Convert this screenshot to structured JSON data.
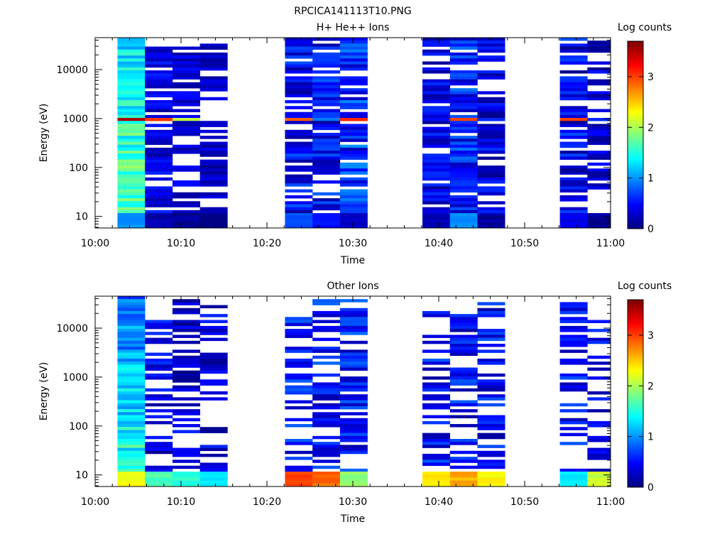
{
  "figure_title": "RPCICA141113T10.PNG",
  "chart_data": [
    {
      "type": "heatmap",
      "title": "H+ He++ Ions",
      "xlabel": "Time",
      "ylabel": "Energy (eV)",
      "colorbar_label": "Log counts",
      "x_ticks": [
        "10:00",
        "10:10",
        "10:20",
        "10:30",
        "10:40",
        "10:50",
        "11:00"
      ],
      "y_ticks": [
        "10",
        "100",
        "1000",
        "10000"
      ],
      "colorbar_ticks": [
        "0",
        "1",
        "2",
        "3"
      ],
      "xlim_minutes": [
        0,
        60
      ],
      "ylim_ev": [
        5.8,
        45000
      ],
      "y_scale": "log",
      "zlim": [
        0,
        3.7
      ],
      "colormap": "jet",
      "columns": [
        {
          "start": 2.6,
          "end": 5.8,
          "pattern": "full",
          "base": 1.55,
          "var": 0.35,
          "tilt": 0.25,
          "peak": 3.55,
          "low": 1.0,
          "seed": 11
        },
        {
          "start": 5.8,
          "end": 9.0,
          "pattern": "sparse",
          "base": 0.35,
          "var": 0.25,
          "peak": 3.05,
          "fill": 0.74,
          "top": 28000,
          "bot": 9,
          "low": 0.15,
          "seed": 12
        },
        {
          "start": 9.0,
          "end": 12.2,
          "pattern": "sparse",
          "base": 0.3,
          "var": 0.2,
          "peak": 2.1,
          "fill": 0.66,
          "top": 28000,
          "bot": 9,
          "low": 0.1,
          "seed": 13
        },
        {
          "start": 12.2,
          "end": 15.4,
          "pattern": "sparse",
          "base": 0.25,
          "var": 0.2,
          "peak": 0.0,
          "fill": 0.52,
          "top": 35000,
          "bot": 11,
          "low": 0.0,
          "seed": 14
        },
        {
          "start": 22.1,
          "end": 25.3,
          "pattern": "sparse",
          "base": 0.45,
          "var": 0.35,
          "peak": 2.9,
          "fill": 0.74,
          "top": 42000,
          "bot": 7,
          "low": 0.8,
          "seed": 21
        },
        {
          "start": 25.3,
          "end": 28.5,
          "pattern": "sparse",
          "base": 0.45,
          "var": 0.35,
          "peak": 0.9,
          "fill": 0.78,
          "top": 42000,
          "bot": 8,
          "low": 0.55,
          "seed": 22
        },
        {
          "start": 28.5,
          "end": 31.7,
          "pattern": "sparse",
          "base": 0.6,
          "var": 0.4,
          "peak": 3.1,
          "fill": 0.8,
          "top": 42000,
          "bot": 11,
          "low": 0.3,
          "seed": 23
        },
        {
          "start": 38.1,
          "end": 41.3,
          "pattern": "sparse",
          "base": 0.35,
          "var": 0.3,
          "peak": 0.5,
          "fill": 0.7,
          "top": 42000,
          "bot": 7,
          "low": 0.2,
          "seed": 31
        },
        {
          "start": 41.3,
          "end": 44.5,
          "pattern": "sparse",
          "base": 0.5,
          "var": 0.4,
          "peak": 3.0,
          "fill": 0.76,
          "top": 42000,
          "bot": 8,
          "low": 1.0,
          "seed": 32
        },
        {
          "start": 44.5,
          "end": 47.7,
          "pattern": "sparse",
          "base": 0.35,
          "var": 0.3,
          "peak": 0.6,
          "fill": 0.66,
          "top": 42000,
          "bot": 12,
          "low": 0.1,
          "seed": 33
        },
        {
          "start": 54.1,
          "end": 57.3,
          "pattern": "sparse",
          "base": 0.4,
          "var": 0.35,
          "peak": 3.0,
          "fill": 0.76,
          "top": 42000,
          "bot": 7,
          "low": 0.4,
          "seed": 41
        },
        {
          "start": 57.3,
          "end": 60.5,
          "pattern": "sparse",
          "base": 0.3,
          "var": 0.25,
          "peak": 0.6,
          "fill": 0.68,
          "top": 38000,
          "bot": 22,
          "low": 0.1,
          "seed": 42
        }
      ]
    },
    {
      "type": "heatmap",
      "title": "Other Ions",
      "xlabel": "Time",
      "ylabel": "Energy (eV)",
      "colorbar_label": "Log counts",
      "x_ticks": [
        "10:00",
        "10:10",
        "10:20",
        "10:30",
        "10:40",
        "10:50",
        "11:00"
      ],
      "y_ticks": [
        "10",
        "100",
        "1000",
        "10000"
      ],
      "colorbar_ticks": [
        "0",
        "1",
        "2",
        "3"
      ],
      "xlim_minutes": [
        0,
        60
      ],
      "ylim_ev": [
        5.8,
        45000
      ],
      "y_scale": "log",
      "zlim": [
        0,
        3.7
      ],
      "colormap": "jet",
      "columns": [
        {
          "start": 2.6,
          "end": 5.8,
          "pattern": "full",
          "base": 1.2,
          "var": 0.35,
          "tilt": 0.45,
          "peak": 0.0,
          "low": 2.3,
          "seed": 51
        },
        {
          "start": 5.8,
          "end": 9.0,
          "pattern": "sparse",
          "base": 0.35,
          "var": 0.3,
          "peak": 0.0,
          "fill": 0.5,
          "top": 15000,
          "bot": 9,
          "low": 1.65,
          "seed": 52
        },
        {
          "start": 9.0,
          "end": 12.2,
          "pattern": "sparse",
          "base": 0.3,
          "var": 0.3,
          "peak": 0.0,
          "fill": 0.52,
          "top": 40000,
          "bot": 12,
          "low": 1.55,
          "seed": 53
        },
        {
          "start": 12.2,
          "end": 15.4,
          "pattern": "sparse",
          "base": 0.3,
          "var": 0.3,
          "peak": 0.0,
          "fill": 0.48,
          "top": 28000,
          "bot": 12,
          "low": 1.35,
          "seed": 54
        },
        {
          "start": 22.1,
          "end": 25.3,
          "pattern": "sparse",
          "base": 0.5,
          "var": 0.35,
          "peak": 0.0,
          "fill": 0.6,
          "top": 16000,
          "bot": 7,
          "low": 3.0,
          "seed": 61
        },
        {
          "start": 25.3,
          "end": 28.5,
          "pattern": "sparse",
          "base": 0.5,
          "var": 0.35,
          "peak": 0.0,
          "fill": 0.6,
          "top": 40000,
          "bot": 7,
          "low": 2.85,
          "seed": 62
        },
        {
          "start": 28.5,
          "end": 31.7,
          "pattern": "sparse",
          "base": 0.5,
          "var": 0.35,
          "peak": 0.0,
          "fill": 0.62,
          "top": 40000,
          "bot": 11,
          "low": 1.9,
          "seed": 63
        },
        {
          "start": 38.1,
          "end": 41.3,
          "pattern": "sparse",
          "base": 0.45,
          "var": 0.35,
          "peak": 0.0,
          "fill": 0.55,
          "top": 22000,
          "bot": 7,
          "low": 2.45,
          "seed": 71
        },
        {
          "start": 41.3,
          "end": 44.5,
          "pattern": "sparse",
          "base": 0.45,
          "var": 0.35,
          "peak": 0.0,
          "fill": 0.58,
          "top": 19000,
          "bot": 7,
          "low": 2.6,
          "seed": 72
        },
        {
          "start": 44.5,
          "end": 47.7,
          "pattern": "sparse",
          "base": 0.45,
          "var": 0.35,
          "peak": 0.0,
          "fill": 0.55,
          "top": 36000,
          "bot": 7,
          "low": 2.3,
          "seed": 73
        },
        {
          "start": 54.1,
          "end": 57.3,
          "pattern": "sparse",
          "base": 0.45,
          "var": 0.35,
          "peak": 0.0,
          "fill": 0.52,
          "top": 32000,
          "bot": 7,
          "low": 1.3,
          "seed": 81
        },
        {
          "start": 57.3,
          "end": 60.5,
          "pattern": "sparse",
          "base": 0.4,
          "var": 0.3,
          "peak": 0.0,
          "fill": 0.45,
          "top": 14000,
          "bot": 7,
          "low": 2.1,
          "seed": 82
        }
      ]
    }
  ]
}
